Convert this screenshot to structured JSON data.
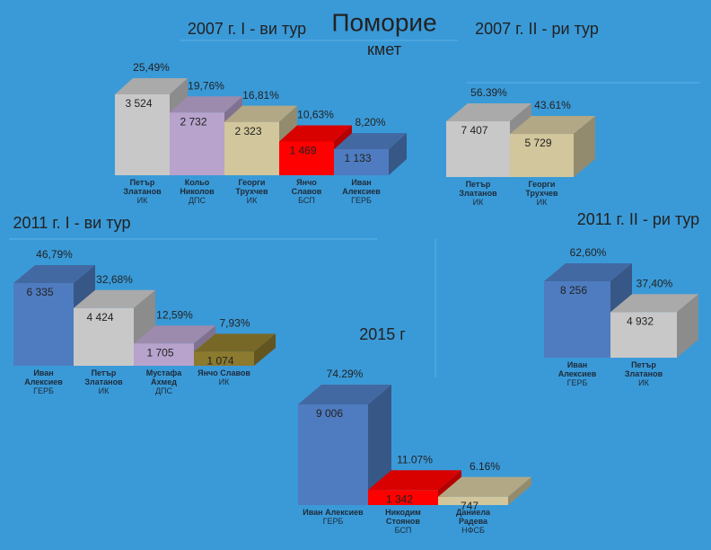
{
  "title": "Поморие",
  "subtitle": "кмет",
  "chart_data": [
    {
      "type": "bar3d",
      "title": "2007 г. I - ви тур",
      "categories": [
        "Петър Златанов",
        "Кольо Николов",
        "Георги Трухчев",
        "Янчо Славов",
        "Иван Алексиев"
      ],
      "parties": [
        "ИК",
        "ДПС",
        "ИК",
        "БСП",
        "ГЕРБ"
      ],
      "values": [
        3524,
        2732,
        2323,
        1469,
        1133
      ],
      "value_labels": [
        "3 524",
        "2 732",
        "2 323",
        "1 469",
        "1 133"
      ],
      "percentages": [
        25.49,
        19.76,
        16.81,
        10.63,
        8.2
      ],
      "percentage_labels": [
        "25,49%",
        "19,76%",
        "16,81%",
        "10,63%",
        "8,20%"
      ],
      "colors": [
        "#c8c8c8",
        "#b7a3cc",
        "#d2c69c",
        "#ff0000",
        "#4f7cc0"
      ]
    },
    {
      "type": "bar3d",
      "title": "2007 г. II - ри тур",
      "categories": [
        "Петър Златанов",
        "Георги Трухчев"
      ],
      "parties": [
        "ИК",
        "ИК"
      ],
      "values": [
        7407,
        5729
      ],
      "value_labels": [
        "7 407",
        "5 729"
      ],
      "percentages": [
        56.39,
        43.61
      ],
      "percentage_labels": [
        "56.39%",
        "43.61%"
      ],
      "colors": [
        "#c8c8c8",
        "#d2c69c"
      ]
    },
    {
      "type": "bar3d",
      "title": "2011 г. I - ви тур",
      "categories": [
        "Иван Алексиев",
        "Петър Златанов",
        "Мустафа Ахмед",
        "Янчо Славов"
      ],
      "parties": [
        "ГЕРБ",
        "ИК",
        "ДПС",
        "ИК"
      ],
      "values": [
        6335,
        4424,
        1705,
        1074
      ],
      "value_labels": [
        "6 335",
        "4 424",
        "1 705",
        "1 074"
      ],
      "percentages": [
        46.79,
        32.68,
        12.59,
        7.93
      ],
      "percentage_labels": [
        "46,79%",
        "32,68%",
        "12,59%",
        "7,93%"
      ],
      "colors": [
        "#4f7cc0",
        "#c8c8c8",
        "#b7a3cc",
        "#8c7a2e"
      ]
    },
    {
      "type": "bar3d",
      "title": "2011 г. II - ри тур",
      "categories": [
        "Иван Алексиев",
        "Петър Златанов"
      ],
      "parties": [
        "ГЕРБ",
        "ИК"
      ],
      "values": [
        8256,
        4932
      ],
      "value_labels": [
        "8 256",
        "4 932"
      ],
      "percentages": [
        62.6,
        37.4
      ],
      "percentage_labels": [
        "62,60%",
        "37,40%"
      ],
      "colors": [
        "#4f7cc0",
        "#c8c8c8"
      ]
    },
    {
      "type": "bar3d",
      "title": "2015 г",
      "categories": [
        "Иван Алексиев",
        "Никодим Стоянов",
        "Даниела Радева"
      ],
      "parties": [
        "ГЕРБ",
        "БСП",
        "НФСБ"
      ],
      "values": [
        9006,
        1342,
        747
      ],
      "value_labels": [
        "9 006",
        "1 342",
        "747"
      ],
      "percentages": [
        74.29,
        11.07,
        6.16
      ],
      "percentage_labels": [
        "74.29%",
        "11.07%",
        "6.16%"
      ],
      "colors": [
        "#4f7cc0",
        "#ff0000",
        "#d2c69c"
      ]
    }
  ]
}
